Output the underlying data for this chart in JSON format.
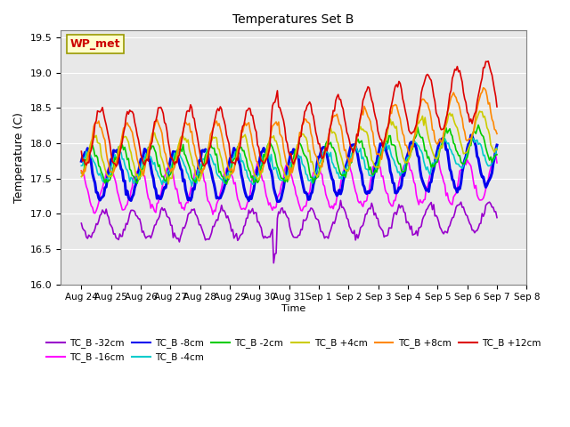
{
  "title": "Temperatures Set B",
  "xlabel": "Time",
  "ylabel": "Temperature (C)",
  "ylim": [
    16.0,
    19.6
  ],
  "yticks": [
    16.0,
    16.5,
    17.0,
    17.5,
    18.0,
    18.5,
    19.0,
    19.5
  ],
  "x_labels": [
    "Aug 24",
    "Aug 25",
    "Aug 26",
    "Aug 27",
    "Aug 28",
    "Aug 29",
    "Aug 30",
    "Aug 31",
    "Sep 1",
    "Sep 2",
    "Sep 3",
    "Sep 4",
    "Sep 5",
    "Sep 6",
    "Sep 7",
    "Sep 8"
  ],
  "n_points": 336,
  "series": [
    {
      "label": "TC_B -32cm",
      "color": "#9900cc",
      "base": 16.85,
      "amplitude": 0.2,
      "trend": 0.1,
      "phase": 0.0,
      "lw": 1.2
    },
    {
      "label": "TC_B -16cm",
      "color": "#ff00ff",
      "base": 17.35,
      "amplitude": 0.3,
      "trend": 0.15,
      "phase": 0.2,
      "lw": 1.2
    },
    {
      "label": "TC_B -8cm",
      "color": "#0000ee",
      "base": 17.55,
      "amplitude": 0.35,
      "trend": 0.2,
      "phase": 0.4,
      "lw": 2.2
    },
    {
      "label": "TC_B -4cm",
      "color": "#00cccc",
      "base": 17.65,
      "amplitude": 0.2,
      "trend": 0.25,
      "phase": 0.5,
      "lw": 1.2
    },
    {
      "label": "TC_B -2cm",
      "color": "#00cc00",
      "base": 17.7,
      "amplitude": 0.25,
      "trend": 0.3,
      "phase": 0.6,
      "lw": 1.2
    },
    {
      "label": "TC_B +4cm",
      "color": "#cccc00",
      "base": 17.8,
      "amplitude": 0.3,
      "trend": 0.4,
      "phase": 0.7,
      "lw": 1.2
    },
    {
      "label": "TC_B +8cm",
      "color": "#ff8800",
      "base": 17.95,
      "amplitude": 0.35,
      "trend": 0.5,
      "phase": 0.8,
      "lw": 1.2
    },
    {
      "label": "TC_B +12cm",
      "color": "#dd0000",
      "base": 18.1,
      "amplitude": 0.4,
      "trend": 0.7,
      "phase": 0.9,
      "lw": 1.2
    }
  ],
  "wp_met_label": "WP_met",
  "bg_color": "#e8e8e8"
}
